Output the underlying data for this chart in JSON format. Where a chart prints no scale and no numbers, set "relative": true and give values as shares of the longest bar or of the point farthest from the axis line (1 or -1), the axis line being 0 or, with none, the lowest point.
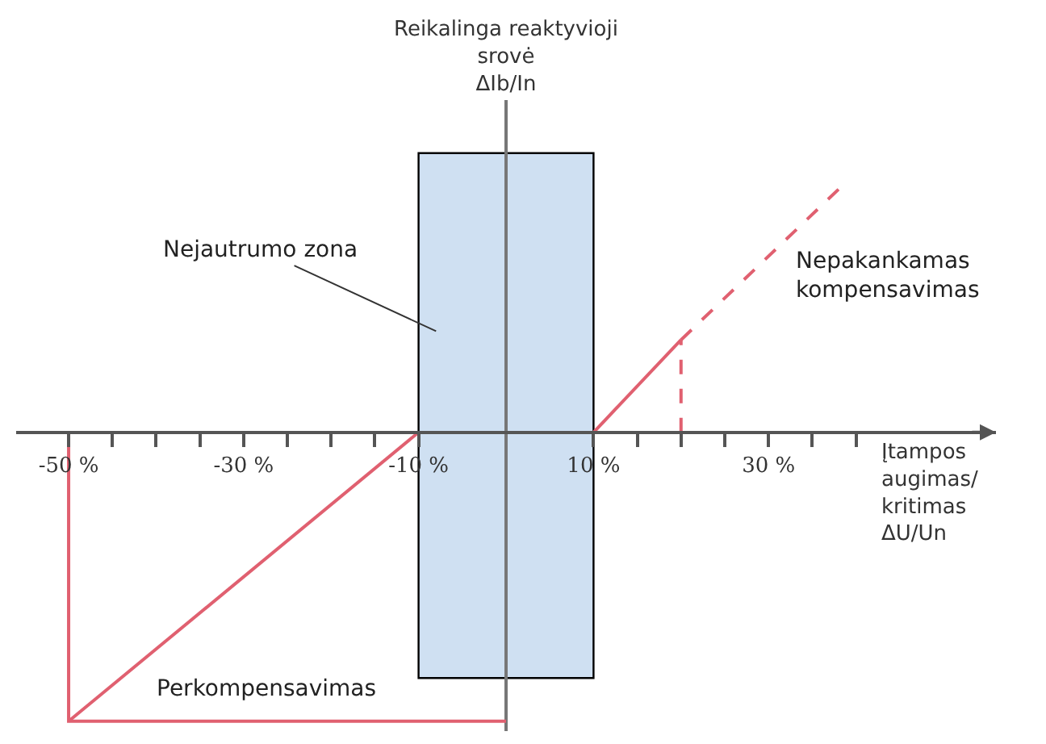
{
  "chart_data": {
    "type": "line",
    "relative": true,
    "ylabel": "Reikalinga reaktyvioji srovė ΔIb/In",
    "xlabel": "Įtampos augimas/ kritimas ΔU/Un",
    "xlim": [
      -56,
      56
    ],
    "xticks": [
      {
        "value": -50,
        "label": "-50 %"
      },
      {
        "value": -45,
        "label": null
      },
      {
        "value": -40,
        "label": null
      },
      {
        "value": -35,
        "label": null
      },
      {
        "value": -30,
        "label": "-30 %"
      },
      {
        "value": -25,
        "label": null
      },
      {
        "value": -20,
        "label": null
      },
      {
        "value": -15,
        "label": null
      },
      {
        "value": -10,
        "label": "-10 %"
      },
      {
        "value": 15,
        "label": null
      },
      {
        "value": 10,
        "label": "10 %"
      },
      {
        "value": 20,
        "label": null
      },
      {
        "value": 25,
        "label": null
      },
      {
        "value": 30,
        "label": "30 %"
      },
      {
        "value": 35,
        "label": null
      },
      {
        "value": 40,
        "label": null
      }
    ],
    "series": [
      {
        "color": "#e06070",
        "x": [
          0,
          -50,
          -50
        ],
        "values": [
          -1,
          -1,
          0
        ]
      },
      {
        "color": "#e06070",
        "x": [
          -50,
          -10
        ],
        "values": [
          -1,
          0
        ]
      },
      {
        "color": "#e06070",
        "x": [
          10,
          20
        ],
        "values": [
          0,
          0.32
        ]
      },
      {
        "color": "#e06070",
        "x": [
          20,
          39
        ],
        "values": [
          0.32,
          0.87
        ],
        "line_style": "dashed"
      },
      {
        "color": "#e06070",
        "x": [
          20,
          20
        ],
        "values": [
          0,
          0.32
        ],
        "line_style": "dashed"
      }
    ],
    "bands": [
      {
        "axis": "x",
        "from": -10,
        "to": 10,
        "label": "Nejautrumo zona",
        "color": "#cfe0f2"
      }
    ],
    "annotations": [
      "Nepakankamas kompensavimas",
      "Perkompensavimas"
    ],
    "grid": false,
    "marker": "none",
    "line_style": "solid"
  }
}
